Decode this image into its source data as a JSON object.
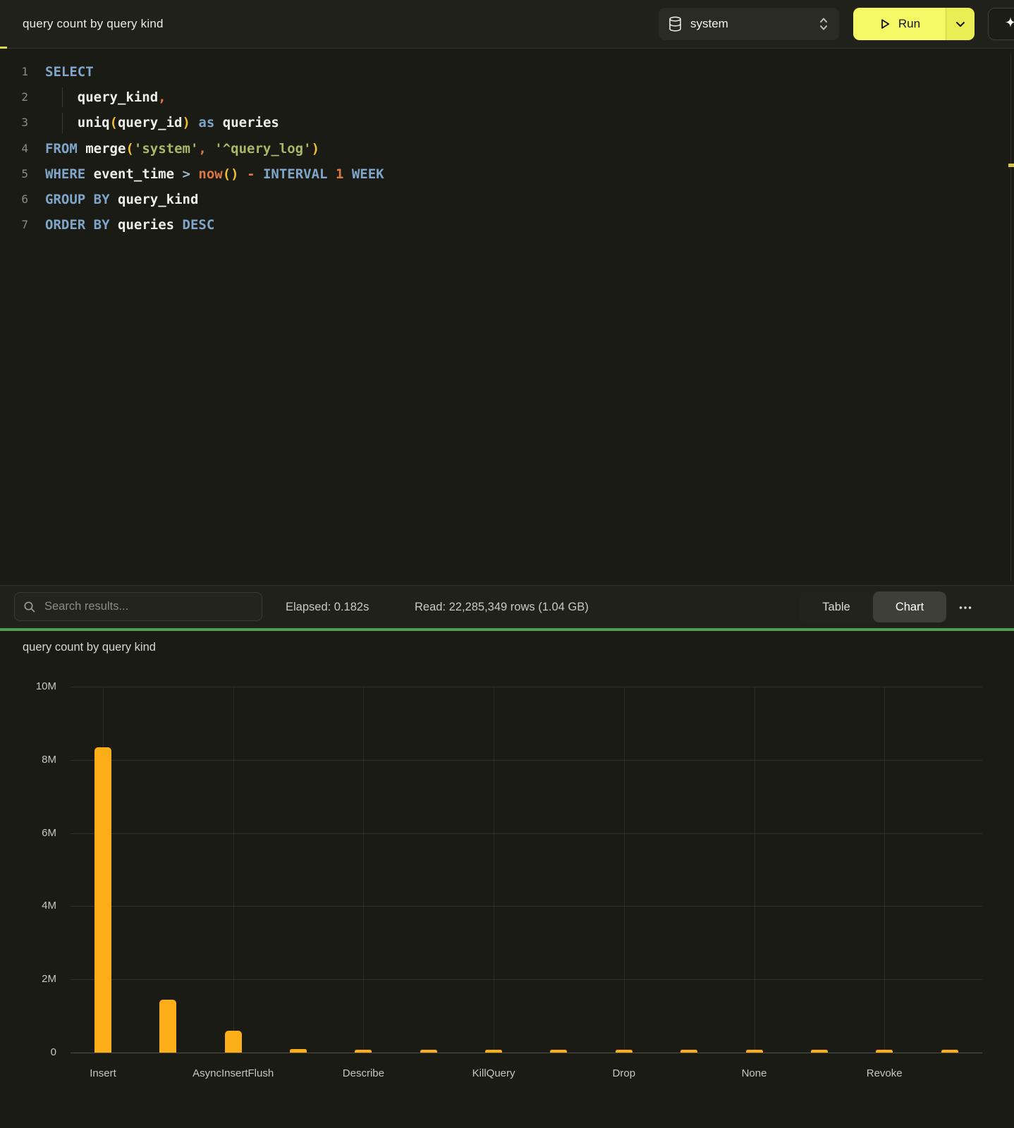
{
  "header": {
    "title": "query count by query kind",
    "database": "system",
    "run_label": "Run"
  },
  "editor": {
    "lines": [
      {
        "n": "1",
        "guide": false,
        "tokens": [
          [
            "kw",
            "SELECT"
          ]
        ]
      },
      {
        "n": "2",
        "guide": true,
        "tokens": [
          [
            "pl",
            "    "
          ],
          [
            "id",
            "query_kind"
          ],
          [
            "or",
            ","
          ]
        ]
      },
      {
        "n": "3",
        "guide": true,
        "tokens": [
          [
            "pl",
            "    "
          ],
          [
            "id",
            "uniq"
          ],
          [
            "pr",
            "("
          ],
          [
            "id",
            "query_id"
          ],
          [
            "pr",
            ")"
          ],
          [
            "pl",
            " "
          ],
          [
            "kw",
            "as"
          ],
          [
            "pl",
            " "
          ],
          [
            "id",
            "queries"
          ]
        ]
      },
      {
        "n": "4",
        "guide": false,
        "tokens": [
          [
            "kw",
            "FROM"
          ],
          [
            "pl",
            " "
          ],
          [
            "id",
            "merge"
          ],
          [
            "pr",
            "("
          ],
          [
            "st",
            "'system'"
          ],
          [
            "or",
            ","
          ],
          [
            "pl",
            " "
          ],
          [
            "st",
            "'^query_log'"
          ],
          [
            "pr",
            ")"
          ]
        ]
      },
      {
        "n": "5",
        "guide": false,
        "tokens": [
          [
            "kw",
            "WHERE"
          ],
          [
            "pl",
            " "
          ],
          [
            "id",
            "event_time"
          ],
          [
            "pl",
            " "
          ],
          [
            "opb",
            ">"
          ],
          [
            "pl",
            " "
          ],
          [
            "or",
            "now"
          ],
          [
            "pr",
            "()"
          ],
          [
            "pl",
            " "
          ],
          [
            "or",
            "-"
          ],
          [
            "pl",
            " "
          ],
          [
            "kw",
            "INTERVAL"
          ],
          [
            "pl",
            " "
          ],
          [
            "num",
            "1"
          ],
          [
            "pl",
            " "
          ],
          [
            "kw",
            "WEEK"
          ]
        ]
      },
      {
        "n": "6",
        "guide": false,
        "tokens": [
          [
            "kw",
            "GROUP"
          ],
          [
            "pl",
            " "
          ],
          [
            "kw",
            "BY"
          ],
          [
            "pl",
            " "
          ],
          [
            "id",
            "query_kind"
          ]
        ]
      },
      {
        "n": "7",
        "guide": false,
        "tokens": [
          [
            "kw",
            "ORDER"
          ],
          [
            "pl",
            " "
          ],
          [
            "kw",
            "BY"
          ],
          [
            "pl",
            " "
          ],
          [
            "id",
            "queries"
          ],
          [
            "pl",
            " "
          ],
          [
            "kw",
            "DESC"
          ]
        ]
      }
    ]
  },
  "results_bar": {
    "search_placeholder": "Search results...",
    "elapsed": "Elapsed: 0.182s",
    "read": "Read: 22,285,349 rows (1.04 GB)",
    "table_label": "Table",
    "chart_label": "Chart",
    "active_view": "Chart"
  },
  "chart_data": {
    "type": "bar",
    "title": "query count by query kind",
    "categories": [
      "Insert",
      "",
      "AsyncInsertFlush",
      "",
      "Describe",
      "",
      "KillQuery",
      "",
      "Drop",
      "",
      "None",
      "",
      "Revoke",
      ""
    ],
    "visible_x_labels": [
      "Insert",
      "AsyncInsertFlush",
      "Describe",
      "KillQuery",
      "Drop",
      "None",
      "Revoke"
    ],
    "values": [
      8350000,
      1450000,
      600000,
      90000,
      85000,
      75000,
      70000,
      65000,
      60000,
      55000,
      50000,
      45000,
      40000,
      35000
    ],
    "xlabel": "",
    "ylabel": "",
    "ylim": [
      0,
      10000000
    ],
    "y_ticks": [
      {
        "label": "10M",
        "value": 10000000
      },
      {
        "label": "8M",
        "value": 8000000
      },
      {
        "label": "6M",
        "value": 6000000
      },
      {
        "label": "4M",
        "value": 4000000
      },
      {
        "label": "2M",
        "value": 2000000
      },
      {
        "label": "0",
        "value": 0
      }
    ],
    "grid": true,
    "legend_position": "none",
    "bar_color": "#FBAE17"
  },
  "colors": {
    "run_button_yellow": "#F5F966",
    "divider_green": "#4F9E52",
    "bar_orange": "#FBAE17",
    "keyword_blue": "#7FA5C9",
    "string_olive": "#A9B766",
    "paren_yellow": "#F0C030",
    "operator_orange": "#DD7844",
    "background_dark": "#1B1B16"
  }
}
